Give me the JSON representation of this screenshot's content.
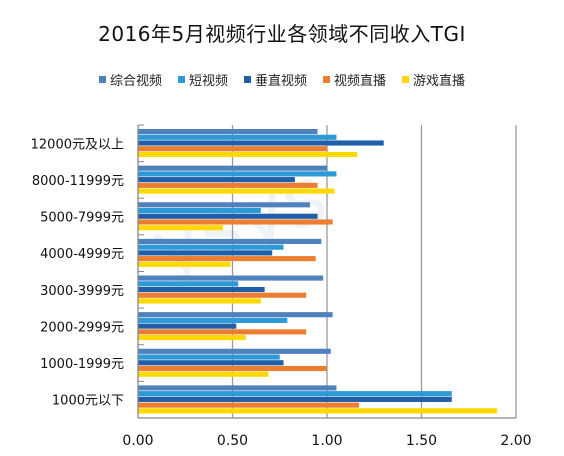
{
  "chart_data": {
    "type": "bar",
    "orientation": "horizontal",
    "title": "2016年5月视频行业各领域不同收入TGI",
    "categories": [
      "12000元及以上",
      "8000-11999元",
      "5000-7999元",
      "4000-4999元",
      "3000-3999元",
      "2000-2999元",
      "1000-1999元",
      "1000元以下"
    ],
    "series": [
      {
        "name": "综合视频",
        "color": "#4f81bd",
        "values": [
          0.95,
          1.0,
          0.91,
          0.97,
          0.98,
          1.03,
          1.02,
          1.05
        ]
      },
      {
        "name": "短视频",
        "color": "#2c9ad6",
        "values": [
          1.05,
          1.05,
          0.65,
          0.77,
          0.53,
          0.79,
          0.75,
          1.66
        ]
      },
      {
        "name": "垂直视频",
        "color": "#1f5fa7",
        "values": [
          1.3,
          0.83,
          0.95,
          0.71,
          0.67,
          0.52,
          0.77,
          1.66
        ]
      },
      {
        "name": "视频直播",
        "color": "#ed7d31",
        "values": [
          1.0,
          0.95,
          1.03,
          0.94,
          0.89,
          0.89,
          1.0,
          1.17
        ]
      },
      {
        "name": "游戏直播",
        "color": "#ffd800",
        "values": [
          1.16,
          1.04,
          0.45,
          0.49,
          0.65,
          0.57,
          0.69,
          1.9
        ]
      }
    ],
    "xlim": [
      0,
      2.0
    ],
    "xticks": [
      "0.00",
      "0.50",
      "1.00",
      "1.50",
      "2.00"
    ],
    "xtick_values": [
      0,
      0.5,
      1.0,
      1.5,
      2.0
    ],
    "grid": true,
    "legend_position": "top"
  }
}
